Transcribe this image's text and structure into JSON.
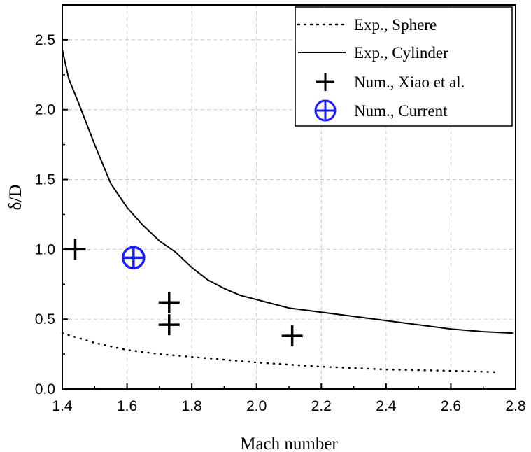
{
  "chart_data": {
    "type": "line",
    "title": "",
    "xlabel": "Mach number",
    "ylabel": "δ/D",
    "xlim": [
      1.4,
      2.8
    ],
    "ylim": [
      0.0,
      2.75
    ],
    "x_ticks": [
      1.4,
      1.6,
      1.8,
      2.0,
      2.2,
      2.4,
      2.6,
      2.8
    ],
    "x_tick_labels": [
      "1.4",
      "1.6",
      "1.8",
      "2.0",
      "2.2",
      "2.4",
      "2.6",
      "2.8"
    ],
    "y_ticks": [
      0.0,
      0.5,
      1.0,
      1.5,
      2.0,
      2.5
    ],
    "y_tick_labels": [
      "0.0",
      "0.5",
      "1.0",
      "1.5",
      "2.0",
      "2.5"
    ],
    "grid": true,
    "legend_position": "top-right",
    "series": [
      {
        "name": "Exp., Sphere",
        "style": "dotted-line",
        "color": "#000000",
        "x": [
          1.4,
          1.5,
          1.6,
          1.7,
          1.8,
          1.9,
          2.0,
          2.2,
          2.4,
          2.6,
          2.75
        ],
        "y": [
          0.4,
          0.33,
          0.28,
          0.25,
          0.23,
          0.21,
          0.19,
          0.16,
          0.14,
          0.13,
          0.12
        ]
      },
      {
        "name": "Exp., Cylinder",
        "style": "solid-line",
        "color": "#000000",
        "x": [
          1.4,
          1.42,
          1.45,
          1.5,
          1.55,
          1.6,
          1.65,
          1.7,
          1.75,
          1.8,
          1.85,
          1.9,
          1.95,
          2.0,
          2.1,
          2.2,
          2.3,
          2.4,
          2.5,
          2.6,
          2.7,
          2.79
        ],
        "y": [
          2.43,
          2.22,
          2.05,
          1.75,
          1.47,
          1.3,
          1.17,
          1.06,
          0.98,
          0.87,
          0.78,
          0.72,
          0.67,
          0.64,
          0.58,
          0.55,
          0.52,
          0.49,
          0.46,
          0.43,
          0.41,
          0.4
        ]
      },
      {
        "name": "Num., Xiao et al.",
        "style": "plus-marker",
        "color": "#000000",
        "x": [
          1.44,
          1.73,
          1.73,
          2.11
        ],
        "y": [
          1.0,
          0.62,
          0.46,
          0.38
        ]
      },
      {
        "name": "Num., Current",
        "style": "circle-plus-marker",
        "color": "#1a1aff",
        "x": [
          1.62
        ],
        "y": [
          0.94
        ]
      }
    ]
  }
}
